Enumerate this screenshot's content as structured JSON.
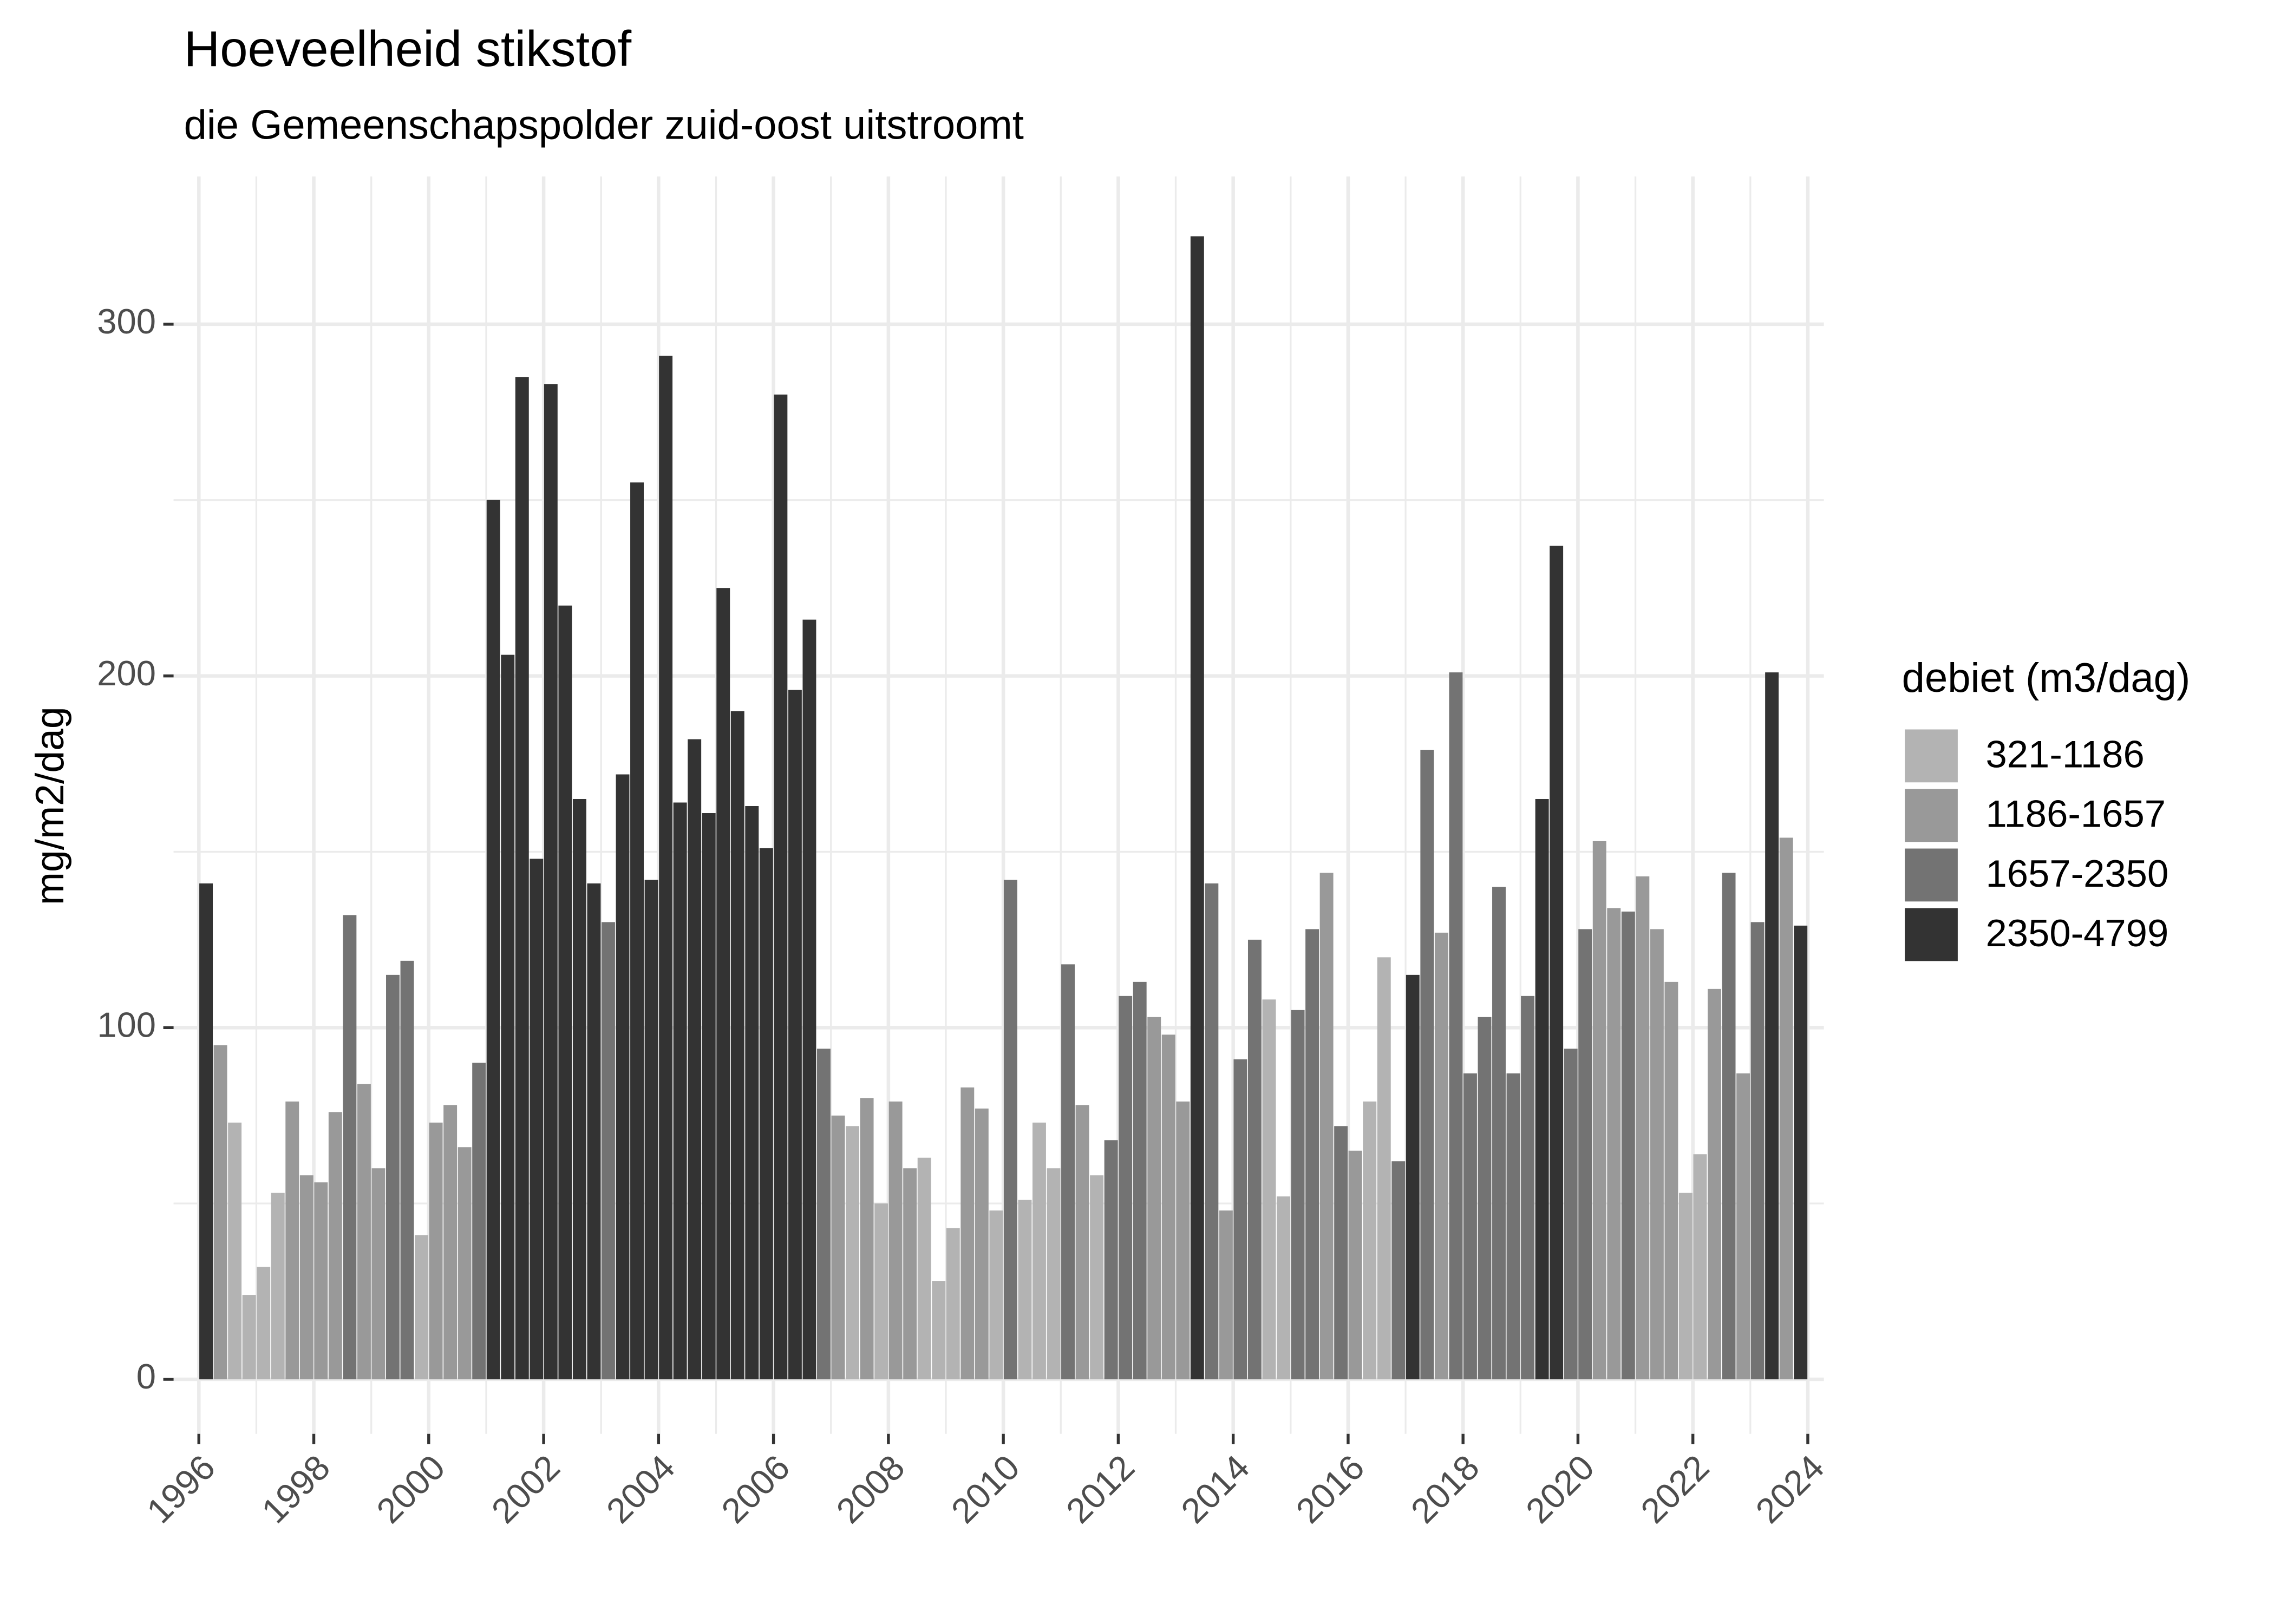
{
  "chart_data": {
    "type": "bar",
    "title": "Hoeveelheid stikstof",
    "subtitle": "die Gemeenschapspolder zuid-oost uitstroomt",
    "y_label": "mg/m2/dag",
    "legend_title": "debiet (m3/dag)",
    "legend_position": "right",
    "grid": true,
    "xlim": [
      1995.56,
      2024.28
    ],
    "xticks": [
      1996,
      1998,
      2000,
      2002,
      2004,
      2006,
      2008,
      2010,
      2012,
      2014,
      2016,
      2018,
      2020,
      2022,
      2024
    ],
    "x_minor_ticks": [
      1997,
      1999,
      2001,
      2003,
      2005,
      2007,
      2009,
      2011,
      2013,
      2015,
      2017,
      2019,
      2021,
      2023
    ],
    "ylim": [
      -15.5,
      342
    ],
    "yticks": [
      0,
      100,
      200,
      300
    ],
    "y_minor_ticks": [
      50,
      150,
      250
    ],
    "series": [
      {
        "name": "321-1186",
        "color": "#b3b3b3",
        "x": [
          1996.625,
          1996.875,
          1997.125,
          1997.375,
          1999.875,
          2007.375,
          2007.875,
          2008.625,
          2008.875,
          2009.125,
          2009.875,
          2010.375,
          2010.625,
          2010.875,
          2011.625,
          2014.625,
          2014.875,
          2016.375,
          2016.625,
          2021.875,
          2022.125
        ],
        "values": [
          73,
          24,
          32,
          53,
          41,
          72,
          50,
          63,
          28,
          43,
          48,
          51,
          73,
          60,
          58,
          108,
          52,
          79,
          120,
          53,
          64
        ]
      },
      {
        "name": "1186-1657",
        "color": "#999999",
        "x": [
          1996.375,
          1997.625,
          1997.875,
          1998.125,
          1998.375,
          1998.875,
          1999.125,
          2000.125,
          2000.375,
          2000.625,
          2007.125,
          2007.625,
          2008.125,
          2008.375,
          2009.375,
          2009.625,
          2011.375,
          2012.625,
          2012.875,
          2013.125,
          2013.875,
          2015.625,
          2016.125,
          2017.625,
          2020.375,
          2020.625,
          2021.125,
          2021.375,
          2021.625,
          2022.375,
          2022.875,
          2023.625
        ],
        "values": [
          95,
          79,
          58,
          56,
          76,
          84,
          60,
          73,
          78,
          66,
          75,
          80,
          79,
          60,
          83,
          77,
          78,
          103,
          98,
          79,
          48,
          144,
          65,
          127,
          153,
          134,
          143,
          128,
          113,
          111,
          87,
          154
        ]
      },
      {
        "name": "1657-2350",
        "color": "#737373",
        "x": [
          1998.625,
          1999.375,
          1999.625,
          2000.875,
          2003.125,
          2006.875,
          2010.125,
          2011.125,
          2011.875,
          2012.125,
          2012.375,
          2013.625,
          2014.125,
          2014.375,
          2015.125,
          2015.375,
          2015.875,
          2016.875,
          2017.375,
          2017.875,
          2018.125,
          2018.375,
          2018.625,
          2018.875,
          2019.125,
          2019.875,
          2020.125,
          2020.875,
          2022.625,
          2023.125
        ],
        "values": [
          132,
          115,
          119,
          90,
          130,
          94,
          142,
          118,
          68,
          109,
          113,
          141,
          91,
          125,
          105,
          128,
          72,
          62,
          179,
          201,
          87,
          103,
          140,
          87,
          109,
          94,
          128,
          133,
          144,
          130
        ]
      },
      {
        "name": "2350-4799",
        "color": "#333333",
        "x": [
          1996.125,
          2001.125,
          2001.375,
          2001.625,
          2001.875,
          2002.125,
          2002.375,
          2002.625,
          2002.875,
          2003.375,
          2003.625,
          2003.875,
          2004.125,
          2004.375,
          2004.625,
          2004.875,
          2005.125,
          2005.375,
          2005.625,
          2005.875,
          2006.125,
          2006.375,
          2006.625,
          2013.375,
          2017.125,
          2019.375,
          2019.625,
          2023.375,
          2023.875
        ],
        "values": [
          141,
          250,
          206,
          285,
          148,
          283,
          220,
          165,
          141,
          172,
          255,
          142,
          291,
          164,
          182,
          161,
          225,
          190,
          163,
          151,
          280,
          196,
          216,
          325,
          115,
          165,
          237,
          201,
          129
        ]
      }
    ]
  }
}
